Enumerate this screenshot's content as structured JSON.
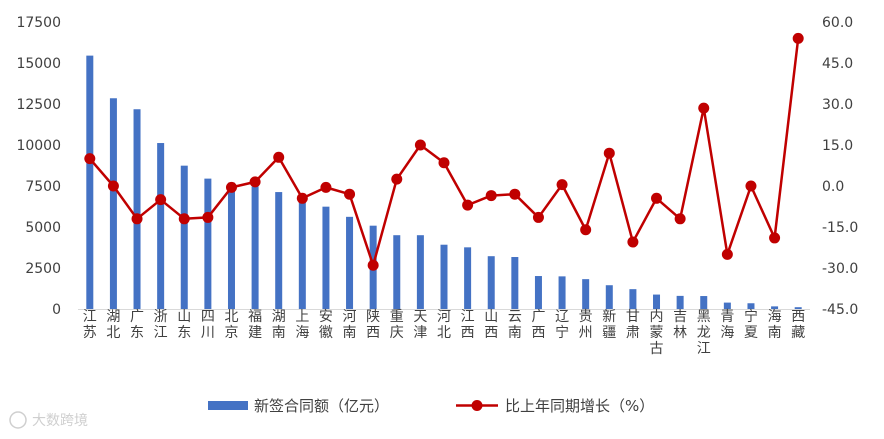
{
  "chart_data": {
    "type": "bar",
    "categories": [
      "江苏",
      "湖北",
      "广东",
      "浙江",
      "山东",
      "四川",
      "北京",
      "福建",
      "湖南",
      "上海",
      "安徽",
      "河南",
      "陕西",
      "重庆",
      "天津",
      "河北",
      "江西",
      "山西",
      "云南",
      "广西",
      "辽宁",
      "贵州",
      "新疆",
      "甘肃",
      "内蒙古",
      "吉林",
      "黑龙江",
      "青海",
      "宁夏",
      "海南",
      "西藏"
    ],
    "series": [
      {
        "name": "新签合同额（亿元）",
        "type": "bar",
        "axis": "left",
        "color": "#4472C4",
        "values": [
          15450,
          12850,
          12180,
          10120,
          8740,
          7950,
          7700,
          7480,
          7130,
          6760,
          6240,
          5620,
          5080,
          4500,
          4500,
          3920,
          3760,
          3220,
          3170,
          2010,
          1990,
          1820,
          1450,
          1210,
          880,
          800,
          790,
          390,
          350,
          160,
          110
        ]
      },
      {
        "name": "比上年同期增长（%）",
        "type": "line",
        "axis": "right",
        "color": "#C00000",
        "values": [
          10.0,
          0.0,
          -12.0,
          -5.0,
          -12.0,
          -11.5,
          -0.5,
          1.5,
          10.5,
          -4.5,
          -0.5,
          -3.0,
          -29.0,
          2.5,
          15.0,
          8.5,
          -7.0,
          -3.5,
          -3.0,
          -11.5,
          0.5,
          -16.0,
          12.0,
          -20.5,
          -4.5,
          -12.0,
          28.5,
          -25.0,
          0.0,
          -19.0,
          54.0
        ]
      }
    ],
    "y_left": {
      "min": 0,
      "max": 17500,
      "ticks": [
        "0",
        "2500",
        "5000",
        "7500",
        "10000",
        "12500",
        "15000",
        "17500"
      ]
    },
    "y_right": {
      "min": -45,
      "max": 60,
      "ticks": [
        "-45.0",
        "-30.0",
        "-15.0",
        "0.0",
        "15.0",
        "30.0",
        "45.0",
        "60.0"
      ]
    },
    "grid": false,
    "legend_position": "bottom"
  },
  "watermark": {
    "text": "大数跨境"
  }
}
